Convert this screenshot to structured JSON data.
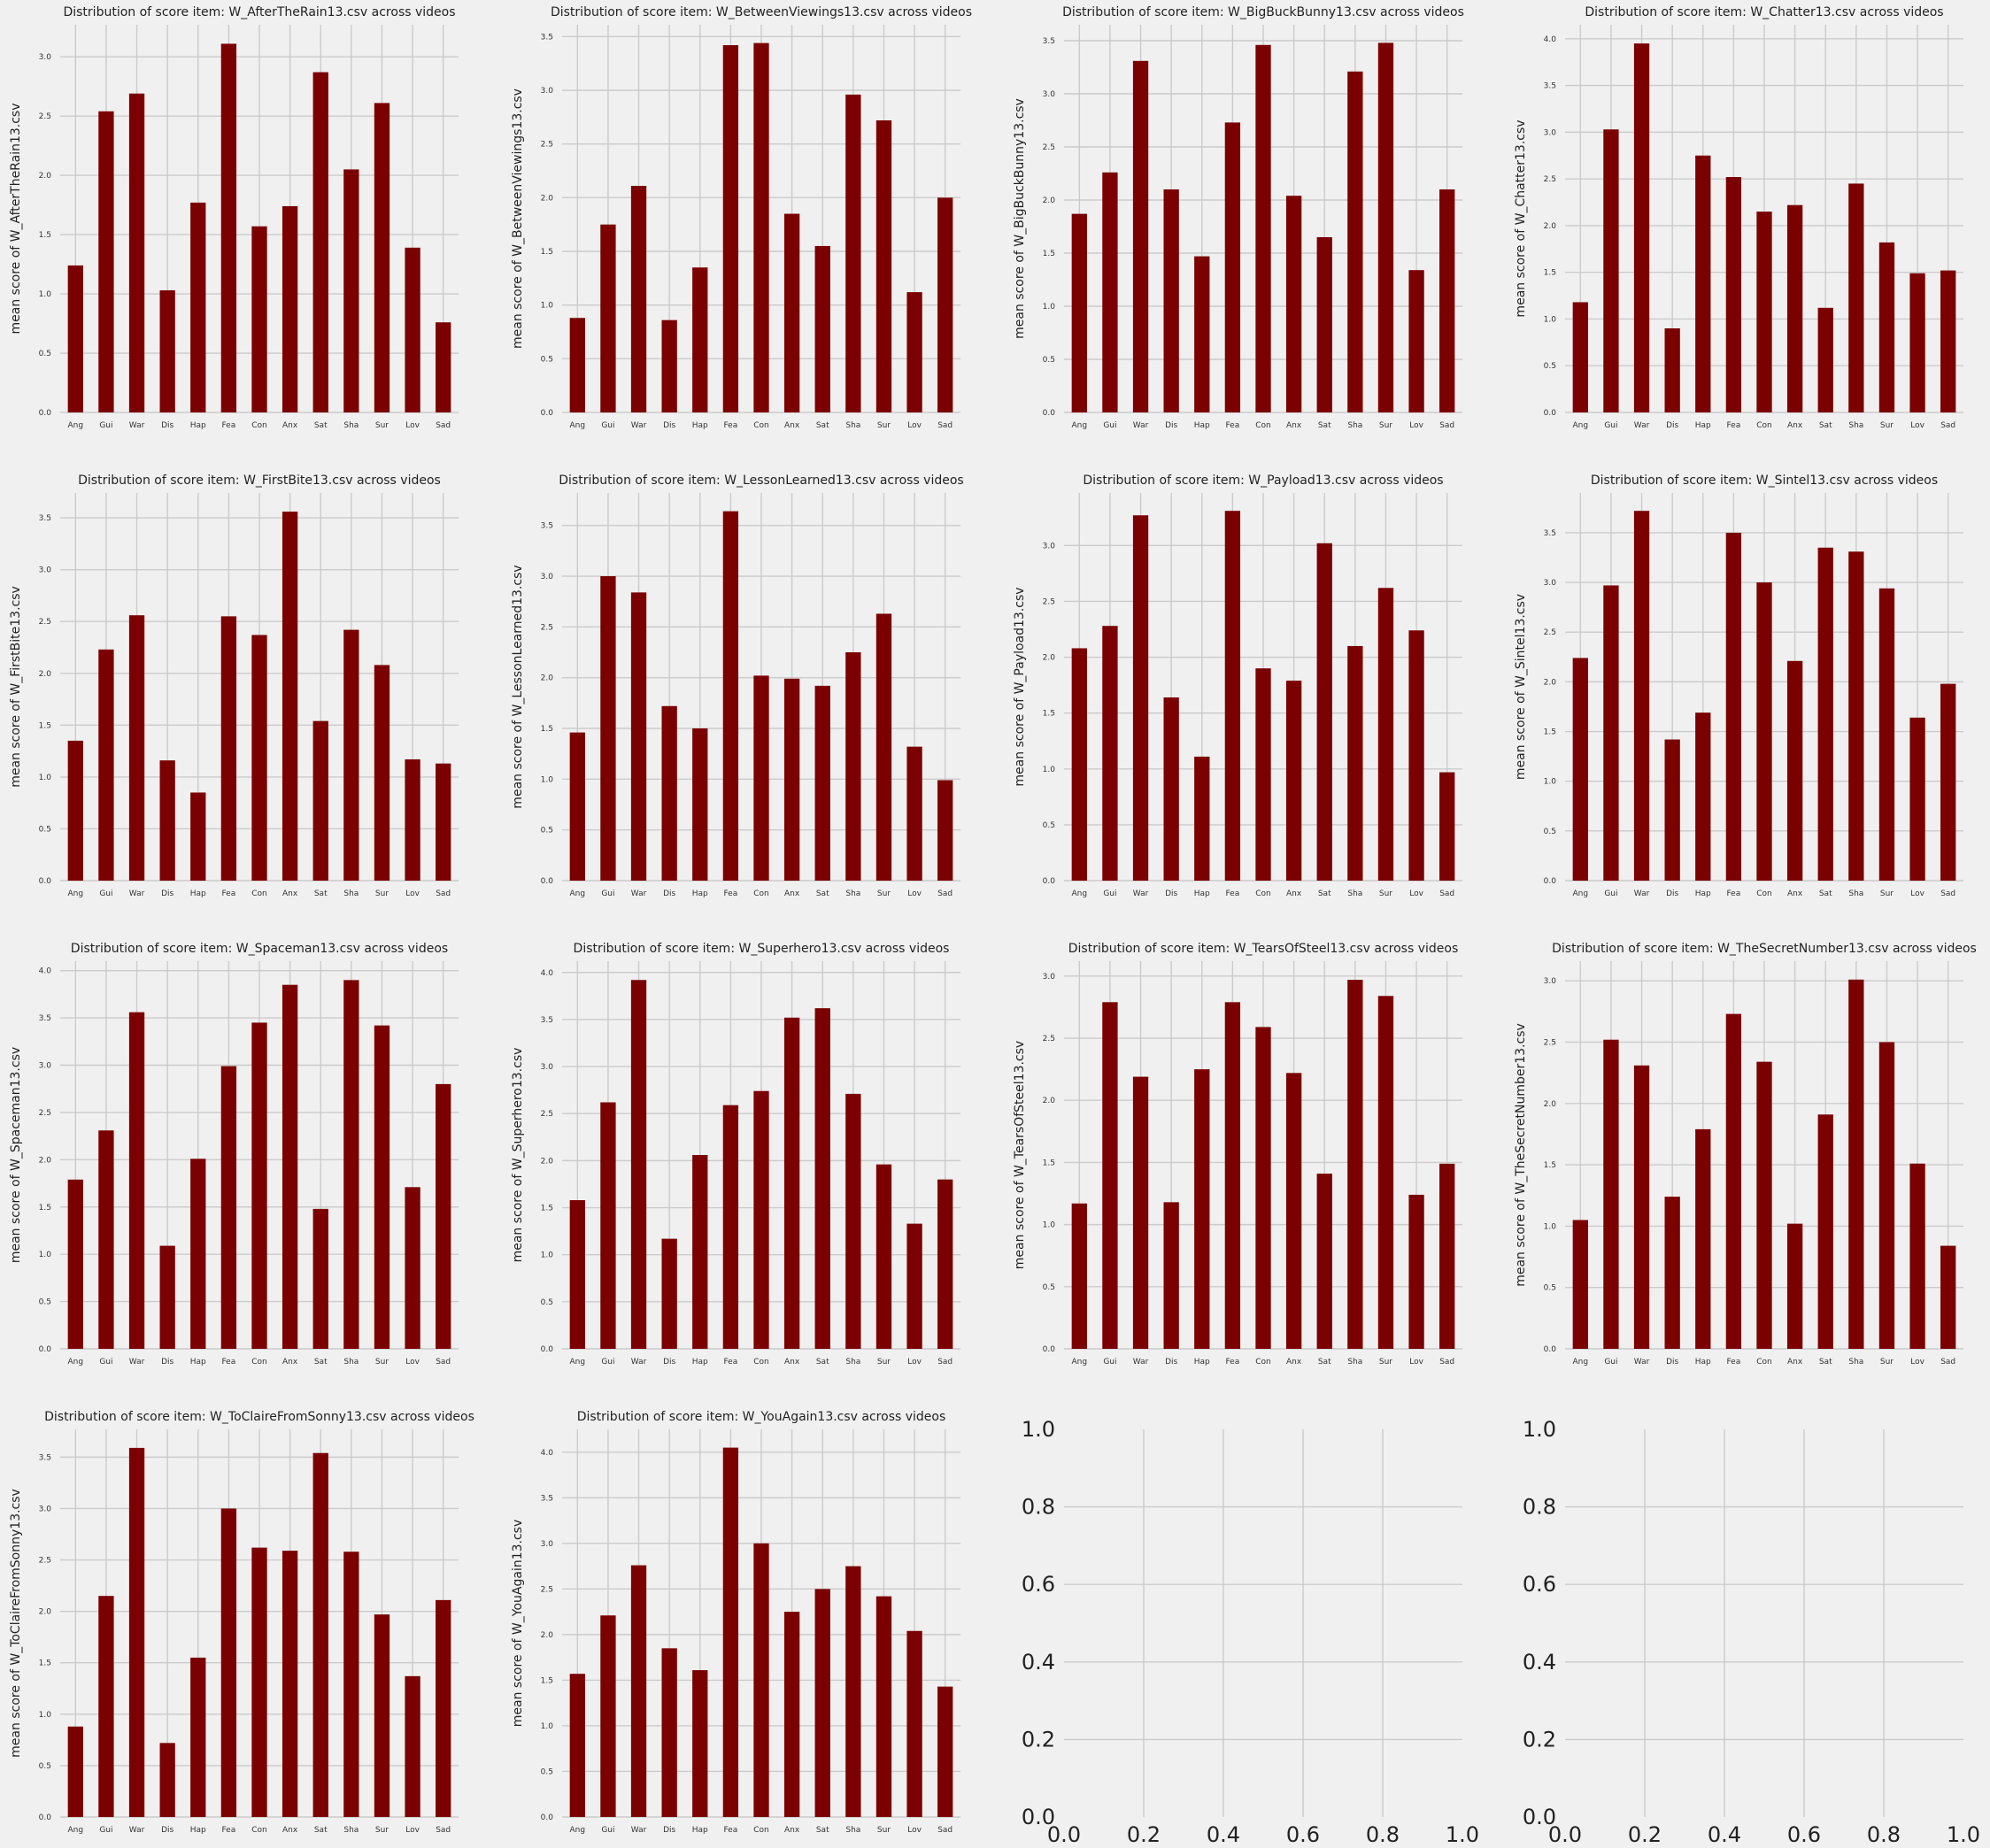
{
  "figure": {
    "background": "#f0f0f0",
    "bar_color": "#7b0000",
    "grid_color": "#cbcbcb"
  },
  "chart_data": [
    {
      "type": "bar",
      "title": "Distribution of score item: W_AfterTheRain13.csv across videos",
      "xlabel": "",
      "ylabel": "mean score of W_AfterTheRain13.csv",
      "categories": [
        "Ang",
        "Gui",
        "War",
        "Dis",
        "Hap",
        "Fea",
        "Con",
        "Anx",
        "Sat",
        "Sha",
        "Sur",
        "Lov",
        "Sad"
      ],
      "values": [
        1.24,
        2.54,
        2.69,
        1.03,
        1.77,
        3.11,
        1.57,
        1.74,
        2.87,
        2.05,
        2.61,
        1.39,
        0.76
      ],
      "ylim": [
        0,
        3.27
      ],
      "yticks": [
        "0.0",
        "0.5",
        "1.0",
        "1.5",
        "2.0",
        "2.5",
        "3.0"
      ],
      "grid": true
    },
    {
      "type": "bar",
      "title": "Distribution of score item: W_BetweenViewings13.csv across videos",
      "xlabel": "",
      "ylabel": "mean score of W_BetweenViewings13.csv",
      "categories": [
        "Ang",
        "Gui",
        "War",
        "Dis",
        "Hap",
        "Fea",
        "Con",
        "Anx",
        "Sat",
        "Sha",
        "Sur",
        "Lov",
        "Sad"
      ],
      "values": [
        0.88,
        1.75,
        2.11,
        0.86,
        1.35,
        3.42,
        3.44,
        1.85,
        1.55,
        2.96,
        2.72,
        1.12,
        2.0
      ],
      "ylim": [
        0,
        3.61
      ],
      "yticks": [
        "0.0",
        "0.5",
        "1.0",
        "1.5",
        "2.0",
        "2.5",
        "3.0",
        "3.5"
      ],
      "grid": true
    },
    {
      "type": "bar",
      "title": "Distribution of score item: W_BigBuckBunny13.csv across videos",
      "xlabel": "",
      "ylabel": "mean score of W_BigBuckBunny13.csv",
      "categories": [
        "Ang",
        "Gui",
        "War",
        "Dis",
        "Hap",
        "Fea",
        "Con",
        "Anx",
        "Sat",
        "Sha",
        "Sur",
        "Lov",
        "Sad"
      ],
      "values": [
        1.87,
        2.26,
        3.31,
        2.1,
        1.47,
        2.73,
        3.46,
        2.04,
        1.65,
        3.21,
        3.48,
        1.34,
        2.1
      ],
      "ylim": [
        0,
        3.65
      ],
      "yticks": [
        "0.0",
        "0.5",
        "1.0",
        "1.5",
        "2.0",
        "2.5",
        "3.0",
        "3.5"
      ],
      "grid": true
    },
    {
      "type": "bar",
      "title": "Distribution of score item: W_Chatter13.csv across videos",
      "xlabel": "",
      "ylabel": "mean score of W_Chatter13.csv",
      "categories": [
        "Ang",
        "Gui",
        "War",
        "Dis",
        "Hap",
        "Fea",
        "Con",
        "Anx",
        "Sat",
        "Sha",
        "Sur",
        "Lov",
        "Sad"
      ],
      "values": [
        1.18,
        3.03,
        3.95,
        0.9,
        2.75,
        2.52,
        2.15,
        2.22,
        1.12,
        2.45,
        1.82,
        1.49,
        1.52
      ],
      "ylim": [
        0,
        4.15
      ],
      "yticks": [
        "0.0",
        "0.5",
        "1.0",
        "1.5",
        "2.0",
        "2.5",
        "3.0",
        "3.5",
        "4.0"
      ],
      "grid": true
    },
    {
      "type": "bar",
      "title": "Distribution of score item: W_FirstBite13.csv across videos",
      "xlabel": "",
      "ylabel": "mean score of W_FirstBite13.csv",
      "categories": [
        "Ang",
        "Gui",
        "War",
        "Dis",
        "Hap",
        "Fea",
        "Con",
        "Anx",
        "Sat",
        "Sha",
        "Sur",
        "Lov",
        "Sad"
      ],
      "values": [
        1.35,
        2.23,
        2.56,
        1.16,
        0.85,
        2.55,
        2.37,
        3.56,
        1.54,
        2.42,
        2.08,
        1.17,
        1.13
      ],
      "ylim": [
        0,
        3.74
      ],
      "yticks": [
        "0.0",
        "0.5",
        "1.0",
        "1.5",
        "2.0",
        "2.5",
        "3.0",
        "3.5"
      ],
      "grid": true
    },
    {
      "type": "bar",
      "title": "Distribution of score item: W_LessonLearned13.csv across videos",
      "xlabel": "",
      "ylabel": "mean score of W_LessonLearned13.csv",
      "categories": [
        "Ang",
        "Gui",
        "War",
        "Dis",
        "Hap",
        "Fea",
        "Con",
        "Anx",
        "Sat",
        "Sha",
        "Sur",
        "Lov",
        "Sad"
      ],
      "values": [
        1.46,
        3.0,
        2.84,
        1.72,
        1.5,
        3.64,
        2.02,
        1.99,
        1.92,
        2.25,
        2.63,
        1.32,
        0.99
      ],
      "ylim": [
        0,
        3.82
      ],
      "yticks": [
        "0.0",
        "0.5",
        "1.0",
        "1.5",
        "2.0",
        "2.5",
        "3.0",
        "3.5"
      ],
      "grid": true
    },
    {
      "type": "bar",
      "title": "Distribution of score item: W_Payload13.csv across videos",
      "xlabel": "",
      "ylabel": "mean score of W_Payload13.csv",
      "categories": [
        "Ang",
        "Gui",
        "War",
        "Dis",
        "Hap",
        "Fea",
        "Con",
        "Anx",
        "Sat",
        "Sha",
        "Sur",
        "Lov",
        "Sad"
      ],
      "values": [
        2.08,
        2.28,
        3.27,
        1.64,
        1.11,
        3.31,
        1.9,
        1.79,
        3.02,
        2.1,
        2.62,
        2.24,
        0.97
      ],
      "ylim": [
        0,
        3.47
      ],
      "yticks": [
        "0.0",
        "0.5",
        "1.0",
        "1.5",
        "2.0",
        "2.5",
        "3.0"
      ],
      "grid": true
    },
    {
      "type": "bar",
      "title": "Distribution of score item: W_Sintel13.csv across videos",
      "xlabel": "",
      "ylabel": "mean score of W_Sintel13.csv",
      "categories": [
        "Ang",
        "Gui",
        "War",
        "Dis",
        "Hap",
        "Fea",
        "Con",
        "Anx",
        "Sat",
        "Sha",
        "Sur",
        "Lov",
        "Sad"
      ],
      "values": [
        2.24,
        2.97,
        3.72,
        1.42,
        1.69,
        3.5,
        3.0,
        2.21,
        3.35,
        3.31,
        2.94,
        1.64,
        1.98
      ],
      "ylim": [
        0,
        3.9
      ],
      "yticks": [
        "0.0",
        "0.5",
        "1.0",
        "1.5",
        "2.0",
        "2.5",
        "3.0",
        "3.5"
      ],
      "grid": true
    },
    {
      "type": "bar",
      "title": "Distribution of score item: W_Spaceman13.csv across videos",
      "xlabel": "",
      "ylabel": "mean score of W_Spaceman13.csv",
      "categories": [
        "Ang",
        "Gui",
        "War",
        "Dis",
        "Hap",
        "Fea",
        "Con",
        "Anx",
        "Sat",
        "Sha",
        "Sur",
        "Lov",
        "Sad"
      ],
      "values": [
        1.79,
        2.31,
        3.56,
        1.09,
        2.01,
        2.99,
        3.45,
        3.85,
        1.48,
        3.9,
        3.42,
        1.71,
        2.8
      ],
      "ylim": [
        0,
        4.1
      ],
      "yticks": [
        "0.0",
        "0.5",
        "1.0",
        "1.5",
        "2.0",
        "2.5",
        "3.0",
        "3.5",
        "4.0"
      ],
      "grid": true
    },
    {
      "type": "bar",
      "title": "Distribution of score item: W_Superhero13.csv across videos",
      "xlabel": "",
      "ylabel": "mean score of W_Superhero13.csv",
      "categories": [
        "Ang",
        "Gui",
        "War",
        "Dis",
        "Hap",
        "Fea",
        "Con",
        "Anx",
        "Sat",
        "Sha",
        "Sur",
        "Lov",
        "Sad"
      ],
      "values": [
        1.58,
        2.62,
        3.92,
        1.17,
        2.06,
        2.59,
        2.74,
        3.52,
        3.62,
        2.71,
        1.96,
        1.33,
        1.8
      ],
      "ylim": [
        0,
        4.12
      ],
      "yticks": [
        "0.0",
        "0.5",
        "1.0",
        "1.5",
        "2.0",
        "2.5",
        "3.0",
        "3.5",
        "4.0"
      ],
      "grid": true
    },
    {
      "type": "bar",
      "title": "Distribution of score item: W_TearsOfSteel13.csv across videos",
      "xlabel": "",
      "ylabel": "mean score of W_TearsOfSteel13.csv",
      "categories": [
        "Ang",
        "Gui",
        "War",
        "Dis",
        "Hap",
        "Fea",
        "Con",
        "Anx",
        "Sat",
        "Sha",
        "Sur",
        "Lov",
        "Sad"
      ],
      "values": [
        1.17,
        2.79,
        2.19,
        1.18,
        2.25,
        2.79,
        2.59,
        2.22,
        1.41,
        2.97,
        2.84,
        1.24,
        1.49
      ],
      "ylim": [
        0,
        3.12
      ],
      "yticks": [
        "0.0",
        "0.5",
        "1.0",
        "1.5",
        "2.0",
        "2.5",
        "3.0"
      ],
      "grid": true
    },
    {
      "type": "bar",
      "title": "Distribution of score item: W_TheSecretNumber13.csv across videos",
      "xlabel": "",
      "ylabel": "mean score of W_TheSecretNumber13.csv",
      "categories": [
        "Ang",
        "Gui",
        "War",
        "Dis",
        "Hap",
        "Fea",
        "Con",
        "Anx",
        "Sat",
        "Sha",
        "Sur",
        "Lov",
        "Sad"
      ],
      "values": [
        1.05,
        2.52,
        2.31,
        1.24,
        1.79,
        2.73,
        2.34,
        1.02,
        1.91,
        3.01,
        2.5,
        1.51,
        0.84
      ],
      "ylim": [
        0,
        3.16
      ],
      "yticks": [
        "0.0",
        "0.5",
        "1.0",
        "1.5",
        "2.0",
        "2.5",
        "3.0"
      ],
      "grid": true
    },
    {
      "type": "bar",
      "title": "Distribution of score item: W_ToClaireFromSonny13.csv across videos",
      "xlabel": "",
      "ylabel": "mean score of W_ToClaireFromSonny13.csv",
      "categories": [
        "Ang",
        "Gui",
        "War",
        "Dis",
        "Hap",
        "Fea",
        "Con",
        "Anx",
        "Sat",
        "Sha",
        "Sur",
        "Lov",
        "Sad"
      ],
      "values": [
        0.88,
        2.15,
        3.59,
        0.72,
        1.55,
        3.0,
        2.62,
        2.59,
        3.54,
        2.58,
        1.97,
        1.37,
        2.11
      ],
      "ylim": [
        0,
        3.77
      ],
      "yticks": [
        "0.0",
        "0.5",
        "1.0",
        "1.5",
        "2.0",
        "2.5",
        "3.0",
        "3.5"
      ],
      "grid": true
    },
    {
      "type": "bar",
      "title": "Distribution of score item: W_YouAgain13.csv across videos",
      "xlabel": "",
      "ylabel": "mean score of W_YouAgain13.csv",
      "categories": [
        "Ang",
        "Gui",
        "War",
        "Dis",
        "Hap",
        "Fea",
        "Con",
        "Anx",
        "Sat",
        "Sha",
        "Sur",
        "Lov",
        "Sad"
      ],
      "values": [
        1.57,
        2.21,
        2.76,
        1.85,
        1.61,
        4.05,
        3.0,
        2.25,
        2.5,
        2.75,
        2.42,
        2.04,
        1.43
      ],
      "ylim": [
        0,
        4.25
      ],
      "yticks": [
        "0.0",
        "0.5",
        "1.0",
        "1.5",
        "2.0",
        "2.5",
        "3.0",
        "3.5",
        "4.0"
      ],
      "grid": true
    },
    {
      "type": "empty",
      "title": "",
      "xlabel": "",
      "ylabel": "",
      "xlim": [
        0,
        1
      ],
      "ylim": [
        0,
        1
      ],
      "xticks": [
        "0.0",
        "0.2",
        "0.4",
        "0.6",
        "0.8",
        "1.0"
      ],
      "yticks": [
        "0.0",
        "0.2",
        "0.4",
        "0.6",
        "0.8",
        "1.0"
      ],
      "grid": true
    },
    {
      "type": "empty",
      "title": "",
      "xlabel": "",
      "ylabel": "",
      "xlim": [
        0,
        1
      ],
      "ylim": [
        0,
        1
      ],
      "xticks": [
        "0.0",
        "0.2",
        "0.4",
        "0.6",
        "0.8",
        "1.0"
      ],
      "yticks": [
        "0.0",
        "0.2",
        "0.4",
        "0.6",
        "0.8",
        "1.0"
      ],
      "grid": true
    }
  ]
}
